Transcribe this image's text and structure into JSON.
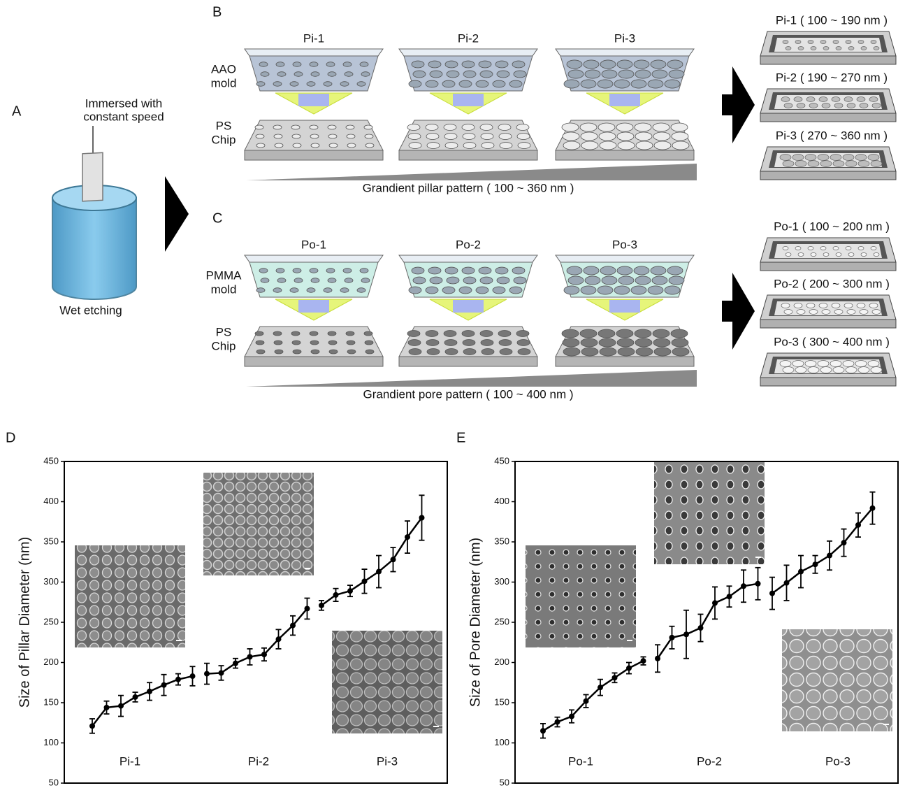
{
  "panel_a": {
    "letter": "A",
    "caption_lines": [
      "Immersed with",
      "constant speed"
    ],
    "label": "Wet etching"
  },
  "panel_b": {
    "letter": "B",
    "columns": [
      "Pi-1",
      "Pi-2",
      "Pi-3"
    ],
    "mold_label": [
      "AAO",
      "mold"
    ],
    "chip_label": [
      "PS",
      "Chip"
    ],
    "gradient_label": "Grandient pillar pattern ( 100 ~ 360 nm )",
    "results": [
      "Pi-1 ( 100 ~ 190 nm )",
      "Pi-2 ( 190 ~ 270 nm )",
      "Pi-3 ( 270 ~ 360 nm )"
    ]
  },
  "panel_c": {
    "letter": "C",
    "columns": [
      "Po-1",
      "Po-2",
      "Po-3"
    ],
    "mold_label": [
      "PMMA",
      "mold"
    ],
    "chip_label": [
      "PS",
      "Chip"
    ],
    "gradient_label": "Grandient pore pattern ( 100 ~ 400 nm )",
    "results": [
      "Po-1 ( 100 ~ 200 nm )",
      "Po-2 ( 200 ~ 300 nm )",
      "Po-3 ( 300 ~ 400 nm )"
    ]
  },
  "chart_data": [
    {
      "type": "line",
      "panel": "D",
      "ylabel": "Size of Pillar Diameter (nm)",
      "ylim": [
        50,
        450
      ],
      "yticks": [
        50,
        100,
        150,
        200,
        250,
        300,
        350,
        400,
        450
      ],
      "groups": [
        "Pi-1",
        "Pi-2",
        "Pi-3"
      ],
      "series": [
        {
          "color": "#000000",
          "values": [
            121,
            144,
            146,
            157,
            164,
            172,
            179,
            183
          ],
          "errors": [
            9,
            8,
            13,
            6,
            11,
            13,
            7,
            12
          ]
        },
        {
          "color": "#000000",
          "values": [
            186,
            187,
            199,
            207,
            210,
            229,
            246,
            267
          ],
          "errors": [
            13,
            9,
            6,
            10,
            8,
            12,
            12,
            13
          ]
        },
        {
          "color": "#000000",
          "values": [
            271,
            284,
            289,
            301,
            313,
            328,
            356,
            380
          ],
          "errors": [
            6,
            8,
            7,
            15,
            20,
            15,
            20,
            28
          ]
        }
      ]
    },
    {
      "type": "line",
      "panel": "E",
      "ylabel": "Size of Pore Diameter (nm)",
      "ylim": [
        50,
        450
      ],
      "yticks": [
        50,
        100,
        150,
        200,
        250,
        300,
        350,
        400,
        450
      ],
      "groups": [
        "Po-1",
        "Po-2",
        "Po-3"
      ],
      "series": [
        {
          "color": "#000000",
          "values": [
            115,
            126,
            133,
            152,
            169,
            181,
            193,
            202
          ],
          "errors": [
            9,
            6,
            8,
            8,
            10,
            6,
            7,
            5
          ]
        },
        {
          "color": "#000000",
          "values": [
            205,
            231,
            235,
            243,
            274,
            282,
            295,
            298
          ],
          "errors": [
            17,
            14,
            30,
            17,
            20,
            13,
            20,
            20
          ]
        },
        {
          "color": "#000000",
          "values": [
            286,
            299,
            313,
            322,
            333,
            349,
            371,
            392
          ],
          "errors": [
            20,
            22,
            20,
            11,
            18,
            17,
            15,
            20
          ]
        }
      ]
    }
  ]
}
